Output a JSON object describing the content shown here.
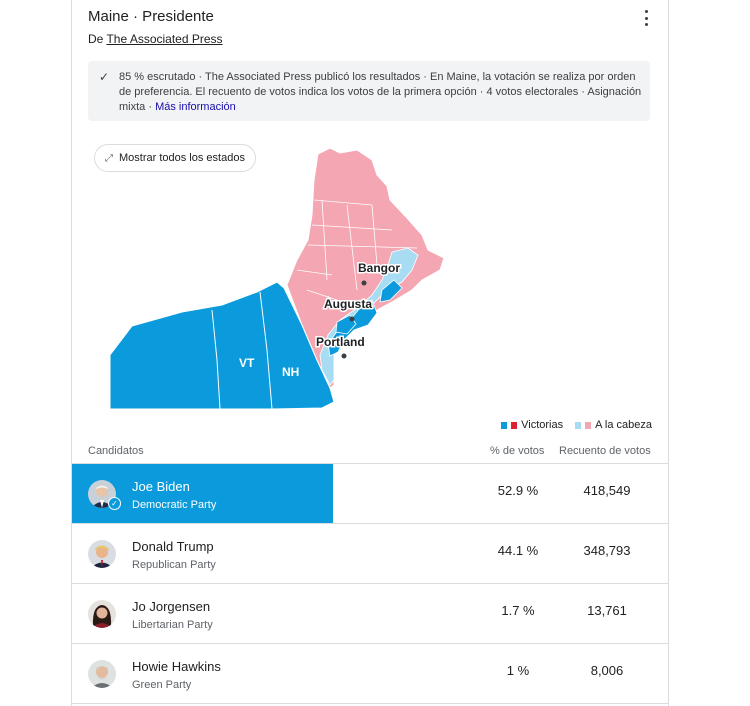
{
  "header": {
    "title": "Maine · Presidente",
    "source_prefix": "De",
    "source_name": "The Associated Press"
  },
  "notice": {
    "text": "85 % escrutado · The Associated Press publicó los resultados · En Maine, la votación se realiza por orden de preferencia. El recuento de votos indica los votos de la primera opción · 4 votos electorales · Asignación mixta · ",
    "link": "Más información"
  },
  "map": {
    "show_all_label": "Mostrar todos los estados",
    "labels": {
      "vt": "VT",
      "nh": "NH",
      "bangor": "Bangor",
      "augusta": "Augusta",
      "portland": "Portland"
    },
    "colors": {
      "won_blue": "#0b9bdc",
      "leading_blue": "#a8dcf3",
      "leading_red": "#f4a6b2",
      "won_red": "#e0202e"
    }
  },
  "legend": {
    "won": "Victorias",
    "leading": "A la cabeza"
  },
  "table": {
    "col_candidates": "Candidatos",
    "col_pct": "% de votos",
    "col_count": "Recuento de votos",
    "rows": [
      {
        "name": "Joe Biden",
        "party": "Democratic Party",
        "pct": "52.9 %",
        "count": "418,549",
        "winner": true
      },
      {
        "name": "Donald Trump",
        "party": "Republican Party",
        "pct": "44.1 %",
        "count": "348,793",
        "winner": false
      },
      {
        "name": "Jo Jorgensen",
        "party": "Libertarian Party",
        "pct": "1.7 %",
        "count": "13,761",
        "winner": false
      },
      {
        "name": "Howie Hawkins",
        "party": "Green Party",
        "pct": "1 %",
        "count": "8,006",
        "winner": false
      }
    ]
  }
}
